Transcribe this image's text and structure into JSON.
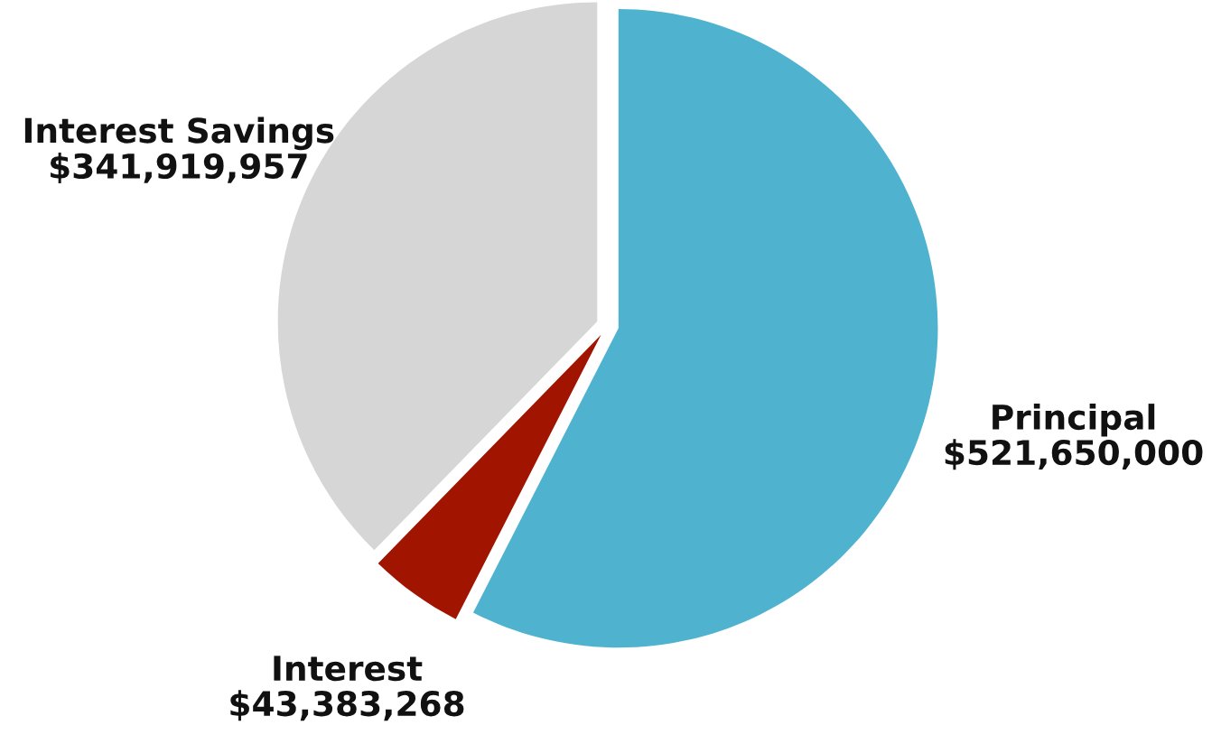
{
  "chart_data": {
    "type": "pie",
    "categories": [
      "Principal",
      "Interest",
      "Interest Savings"
    ],
    "values": [
      521650000,
      43383268,
      341919957
    ],
    "value_labels": [
      "$521,650,000",
      "$43,383,268",
      "$341,919,957"
    ],
    "colors": [
      "#4fb3cf",
      "#a01400",
      "#d6d6d6"
    ],
    "legend": false
  }
}
